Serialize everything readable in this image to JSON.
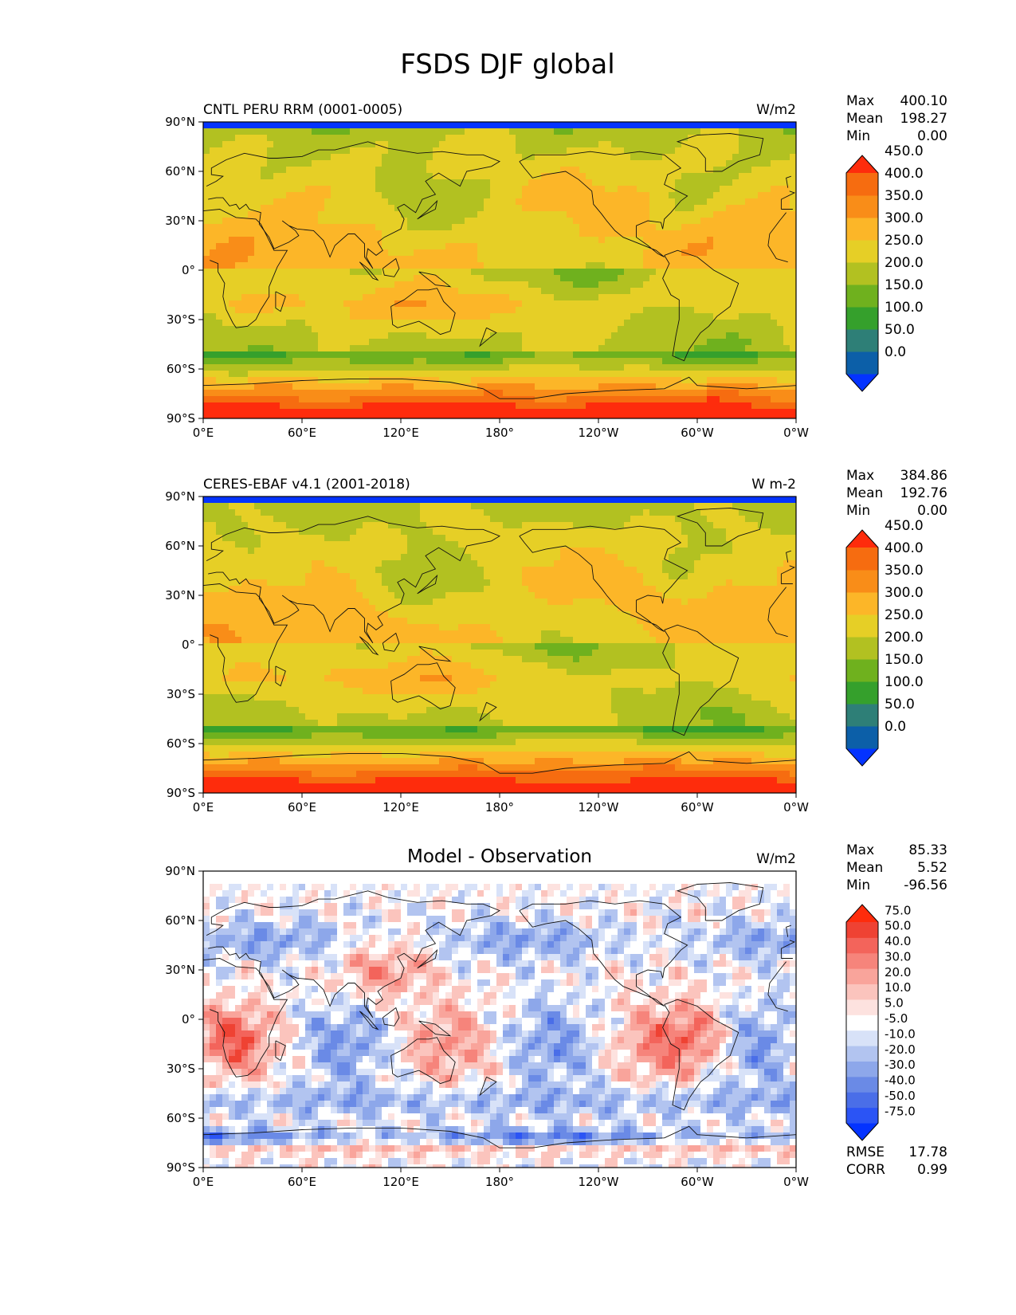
{
  "title": "FSDS DJF global",
  "lat_ticks": [
    "90°N",
    "60°N",
    "30°N",
    "0°",
    "30°S",
    "60°S",
    "90°S"
  ],
  "lon_ticks": [
    "0°E",
    "60°E",
    "120°E",
    "180°",
    "120°W",
    "60°W",
    "0°W"
  ],
  "stat_keys": {
    "max": "Max",
    "mean": "Mean",
    "min": "Min",
    "rmse": "RMSE",
    "corr": "CORR"
  },
  "chart_data": [
    {
      "type": "heatmap",
      "title": "CNTL PERU RRM (0001-0005)",
      "units": "W/m2",
      "field": "model",
      "stats": {
        "max": "400.10",
        "mean": "198.27",
        "min": "0.00"
      },
      "levels": [
        "0.0",
        "50.0",
        "100.0",
        "150.0",
        "200.0",
        "250.0",
        "300.0",
        "350.0",
        "400.0",
        "450.0"
      ],
      "colors": [
        "#0433ff",
        "#0c5fa8",
        "#2e7f77",
        "#35a02c",
        "#6fb11e",
        "#b2c121",
        "#e6cf26",
        "#fcb628",
        "#f98d18",
        "#f66c10",
        "#fe2c0c"
      ]
    },
    {
      "type": "heatmap",
      "title": "CERES-EBAF v4.1 (2001-2018)",
      "units": "W m-2",
      "field": "obs",
      "stats": {
        "max": "384.86",
        "mean": "192.76",
        "min": "0.00"
      },
      "levels": [
        "0.0",
        "50.0",
        "100.0",
        "150.0",
        "200.0",
        "250.0",
        "300.0",
        "350.0",
        "400.0",
        "450.0"
      ],
      "colors": [
        "#0433ff",
        "#0c5fa8",
        "#2e7f77",
        "#35a02c",
        "#6fb11e",
        "#b2c121",
        "#e6cf26",
        "#fcb628",
        "#f98d18",
        "#f66c10",
        "#fe2c0c"
      ]
    },
    {
      "type": "heatmap",
      "title": "Model - Observation",
      "units": "W/m2",
      "field": "diff",
      "stats": {
        "max": "85.33",
        "mean": "5.52",
        "min": "-96.56",
        "rmse": "17.78",
        "corr": "0.99"
      },
      "levels": [
        "-75.0",
        "-50.0",
        "-40.0",
        "-30.0",
        "-20.0",
        "-10.0",
        "-5.0",
        "5.0",
        "10.0",
        "20.0",
        "30.0",
        "40.0",
        "50.0",
        "75.0"
      ],
      "colors": [
        "#0433ff",
        "#2b54f5",
        "#4a6ee8",
        "#6a8ae6",
        "#8da7ea",
        "#b2c4f0",
        "#d8e2f8",
        "#ffffff",
        "#fde2df",
        "#fbc4bd",
        "#f9a49b",
        "#f6847b",
        "#f3645b",
        "#ef4233",
        "#fe2c0c"
      ]
    }
  ]
}
